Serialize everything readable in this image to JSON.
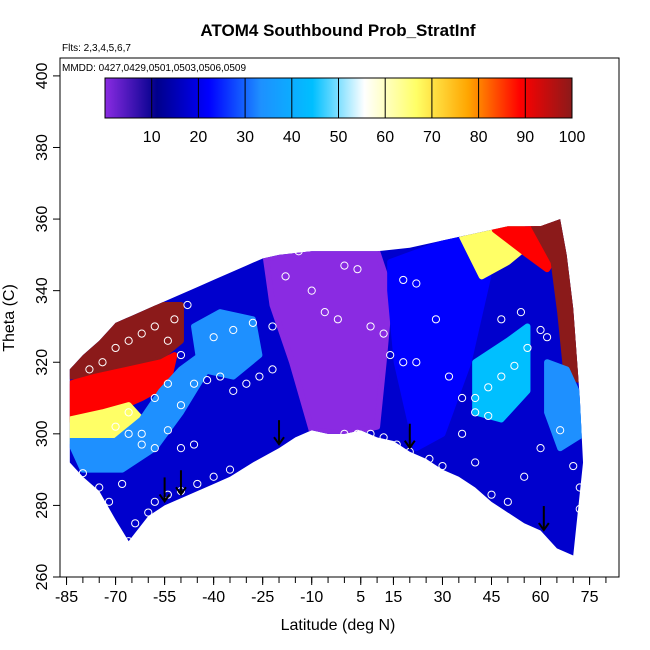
{
  "chart_data": {
    "type": "heatmap",
    "title": "ATOM4 Southbound Prob_StratInf",
    "annotations": {
      "flights": "Flts: 2,3,4,5,6,7",
      "dates": "MMDD: 0427,0429,0501,0503,0506,0509"
    },
    "xlabel": "Latitude (deg N)",
    "ylabel": "Theta (C)",
    "xlim": [
      -87,
      84
    ],
    "ylim": [
      260,
      405
    ],
    "x_ticks": [
      -85,
      -70,
      -55,
      -40,
      -25,
      -10,
      5,
      15,
      30,
      45,
      60,
      75
    ],
    "x_minor_ticks": [
      -85,
      -80,
      -75,
      -70,
      -65,
      -60,
      -55,
      -50,
      -45,
      -40,
      -35,
      -30,
      -25,
      -20,
      -15,
      -10,
      -5,
      0,
      5,
      10,
      15,
      20,
      25,
      30,
      35,
      40,
      45,
      50,
      55,
      60,
      65,
      70,
      75,
      80
    ],
    "y_ticks": [
      260,
      280,
      300,
      320,
      340,
      360,
      380,
      400
    ],
    "colorbar": {
      "min": 0,
      "max": 100,
      "ticks": [
        10,
        20,
        30,
        40,
        50,
        60,
        70,
        80,
        90,
        100
      ],
      "colors": [
        "#8a2be2",
        "#00008b",
        "#0000ff",
        "#1e90ff",
        "#00bfff",
        "#ffffff",
        "#ffff66",
        "#ffa500",
        "#ff0000",
        "#8b1a1a"
      ]
    },
    "field": {
      "surface": [
        [
          -84,
          292
        ],
        [
          -80,
          288
        ],
        [
          -75,
          284
        ],
        [
          -70,
          276
        ],
        [
          -66,
          270
        ],
        [
          -60,
          277
        ],
        [
          -55,
          280
        ],
        [
          -50,
          282
        ],
        [
          -45,
          284
        ],
        [
          -40,
          286
        ],
        [
          -35,
          288
        ],
        [
          -28,
          292
        ],
        [
          -20,
          296
        ],
        [
          -15,
          299
        ],
        [
          -10,
          301
        ],
        [
          -5,
          300
        ],
        [
          0,
          300
        ],
        [
          5,
          301
        ],
        [
          10,
          299
        ],
        [
          15,
          298
        ],
        [
          20,
          295
        ],
        [
          25,
          293
        ],
        [
          30,
          290
        ],
        [
          35,
          288
        ],
        [
          40,
          285
        ],
        [
          45,
          281
        ],
        [
          50,
          278
        ],
        [
          55,
          275
        ],
        [
          60,
          273
        ],
        [
          65,
          268
        ],
        [
          70,
          266
        ]
      ],
      "top": [
        [
          -84,
          318
        ],
        [
          -80,
          322
        ],
        [
          -75,
          326
        ],
        [
          -70,
          331
        ],
        [
          -65,
          333
        ],
        [
          -60,
          335
        ],
        [
          -55,
          337
        ],
        [
          -50,
          339
        ],
        [
          -45,
          341
        ],
        [
          -40,
          343
        ],
        [
          -35,
          345
        ],
        [
          -30,
          347
        ],
        [
          -25,
          349
        ],
        [
          -20,
          350
        ],
        [
          -10,
          351
        ],
        [
          0,
          351
        ],
        [
          10,
          351
        ],
        [
          20,
          352
        ],
        [
          30,
          354
        ],
        [
          40,
          356
        ],
        [
          50,
          358
        ],
        [
          60,
          358
        ],
        [
          66,
          360
        ],
        [
          68,
          350
        ],
        [
          70,
          335
        ],
        [
          72,
          310
        ],
        [
          73,
          292
        ]
      ],
      "regions": [
        {
          "value": 95,
          "points": [
            [
              -84,
              320
            ],
            [
              -78,
              326
            ],
            [
              -70,
              332
            ],
            [
              -60,
              336
            ],
            [
              -50,
              336
            ],
            [
              -50,
              326
            ],
            [
              -58,
              320
            ],
            [
              -68,
              318
            ],
            [
              -78,
              316
            ],
            [
              -84,
              316
            ]
          ]
        },
        {
          "value": 80,
          "points": [
            [
              -84,
              314
            ],
            [
              -76,
              316
            ],
            [
              -66,
              318
            ],
            [
              -56,
              320
            ],
            [
              -52,
              322
            ],
            [
              -54,
              314
            ],
            [
              -62,
              310
            ],
            [
              -72,
              306
            ],
            [
              -84,
              304
            ]
          ]
        },
        {
          "value": 60,
          "points": [
            [
              -84,
              304
            ],
            [
              -74,
              306
            ],
            [
              -66,
              308
            ],
            [
              -62,
              304
            ],
            [
              -70,
              298
            ],
            [
              -84,
              298
            ]
          ]
        },
        {
          "value": 35,
          "points": [
            [
              -84,
              298
            ],
            [
              -70,
              298
            ],
            [
              -62,
              304
            ],
            [
              -56,
              312
            ],
            [
              -50,
              318
            ],
            [
              -44,
              322
            ],
            [
              -42,
              318
            ],
            [
              -50,
              306
            ],
            [
              -58,
              296
            ],
            [
              -68,
              290
            ],
            [
              -80,
              290
            ]
          ]
        },
        {
          "value": 8,
          "points": [
            [
              -24,
              349
            ],
            [
              -12,
              351
            ],
            [
              0,
              351
            ],
            [
              10,
              351
            ],
            [
              14,
              340
            ],
            [
              12,
              320
            ],
            [
              10,
              302
            ],
            [
              0,
              300
            ],
            [
              -10,
              301
            ],
            [
              -16,
              320
            ],
            [
              -22,
              336
            ]
          ]
        },
        {
          "value": 22,
          "points": [
            [
              14,
              348
            ],
            [
              26,
              352
            ],
            [
              36,
              355
            ],
            [
              44,
              344
            ],
            [
              38,
              320
            ],
            [
              30,
              300
            ],
            [
              22,
              296
            ],
            [
              16,
              320
            ],
            [
              14,
              340
            ]
          ]
        },
        {
          "value": 40,
          "points": [
            [
              40,
              320
            ],
            [
              50,
              326
            ],
            [
              56,
              330
            ],
            [
              56,
              312
            ],
            [
              48,
              304
            ],
            [
              40,
              306
            ]
          ]
        },
        {
          "value": 60,
          "points": [
            [
              36,
              355
            ],
            [
              46,
              357
            ],
            [
              54,
              358
            ],
            [
              58,
              354
            ],
            [
              50,
              348
            ],
            [
              42,
              344
            ]
          ]
        },
        {
          "value": 80,
          "points": [
            [
              46,
              357
            ],
            [
              56,
              358
            ],
            [
              62,
              359
            ],
            [
              66,
              352
            ],
            [
              62,
              346
            ],
            [
              56,
              350
            ]
          ]
        },
        {
          "value": 92,
          "points": [
            [
              58,
              358
            ],
            [
              66,
              360
            ],
            [
              68,
              350
            ],
            [
              70,
              335
            ],
            [
              72,
              315
            ],
            [
              68,
              316
            ],
            [
              66,
              334
            ],
            [
              64,
              348
            ]
          ]
        },
        {
          "value": 35,
          "points": [
            [
              62,
              320
            ],
            [
              68,
              318
            ],
            [
              72,
              310
            ],
            [
              73,
              300
            ],
            [
              66,
              296
            ],
            [
              62,
              306
            ]
          ]
        },
        {
          "value": 30,
          "points": [
            [
              -46,
              330
            ],
            [
              -38,
              334
            ],
            [
              -28,
              332
            ],
            [
              -26,
              322
            ],
            [
              -34,
              316
            ],
            [
              -44,
              318
            ]
          ]
        }
      ]
    },
    "points": [
      [
        -80,
        289
      ],
      [
        -75,
        285
      ],
      [
        -72,
        281
      ],
      [
        -68,
        286
      ],
      [
        -66,
        270
      ],
      [
        -64,
        275
      ],
      [
        -60,
        278
      ],
      [
        -58,
        281
      ],
      [
        -54,
        283
      ],
      [
        -50,
        284
      ],
      [
        -45,
        286
      ],
      [
        -40,
        288
      ],
      [
        -35,
        290
      ],
      [
        -78,
        318
      ],
      [
        -74,
        320
      ],
      [
        -70,
        324
      ],
      [
        -66,
        326
      ],
      [
        -62,
        328
      ],
      [
        -58,
        330
      ],
      [
        -54,
        326
      ],
      [
        -50,
        322
      ],
      [
        -48,
        336
      ],
      [
        -52,
        332
      ],
      [
        -70,
        302
      ],
      [
        -66,
        306
      ],
      [
        -62,
        300
      ],
      [
        -58,
        310
      ],
      [
        -54,
        314
      ],
      [
        -50,
        308
      ],
      [
        -46,
        314
      ],
      [
        -42,
        315
      ],
      [
        -38,
        316
      ],
      [
        -34,
        312
      ],
      [
        -30,
        314
      ],
      [
        -26,
        316
      ],
      [
        -22,
        318
      ],
      [
        -66,
        300
      ],
      [
        -62,
        297
      ],
      [
        -58,
        296
      ],
      [
        -54,
        301
      ],
      [
        -50,
        296
      ],
      [
        -46,
        297
      ],
      [
        -40,
        327
      ],
      [
        -34,
        329
      ],
      [
        -28,
        331
      ],
      [
        -22,
        330
      ],
      [
        -18,
        344
      ],
      [
        -14,
        351
      ],
      [
        -10,
        340
      ],
      [
        -6,
        334
      ],
      [
        -2,
        332
      ],
      [
        0,
        347
      ],
      [
        4,
        346
      ],
      [
        8,
        330
      ],
      [
        12,
        328
      ],
      [
        18,
        343
      ],
      [
        22,
        342
      ],
      [
        0,
        300
      ],
      [
        4,
        300
      ],
      [
        8,
        300
      ],
      [
        12,
        299
      ],
      [
        16,
        297
      ],
      [
        20,
        295
      ],
      [
        26,
        293
      ],
      [
        30,
        291
      ],
      [
        14,
        322
      ],
      [
        18,
        320
      ],
      [
        22,
        320
      ],
      [
        28,
        332
      ],
      [
        32,
        316
      ],
      [
        36,
        310
      ],
      [
        40,
        310
      ],
      [
        44,
        313
      ],
      [
        48,
        316
      ],
      [
        52,
        319
      ],
      [
        56,
        324
      ],
      [
        60,
        329
      ],
      [
        62,
        327
      ],
      [
        36,
        300
      ],
      [
        40,
        292
      ],
      [
        45,
        283
      ],
      [
        50,
        281
      ],
      [
        55,
        288
      ],
      [
        60,
        296
      ],
      [
        66,
        301
      ],
      [
        70,
        291
      ],
      [
        72,
        285
      ],
      [
        72,
        279
      ],
      [
        40,
        306
      ],
      [
        44,
        305
      ],
      [
        48,
        332
      ],
      [
        54,
        334
      ]
    ],
    "arrows": [
      -55,
      -50,
      -20,
      20,
      61
    ]
  }
}
